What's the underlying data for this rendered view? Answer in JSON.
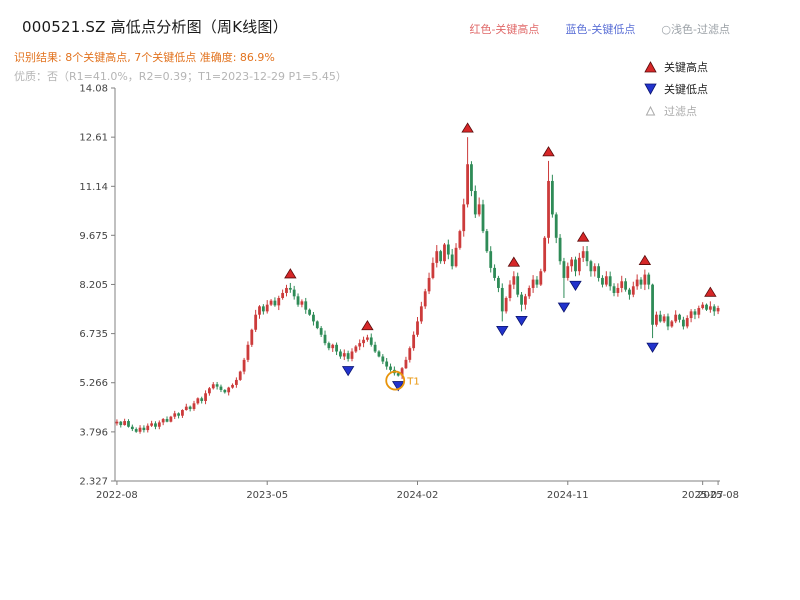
{
  "header": {
    "title": "000521.SZ 高低点分析图（周K线图）",
    "legend_high": "红色-关键高点",
    "legend_low": "蓝色-关键低点",
    "legend_filtered": "○浅色-过滤点",
    "result_line": "识别结果: 8个关键高点, 7个关键低点  准确度: 86.9%",
    "quality_line": "优质：否（R1=41.0%，R2=0.39；T1=2023-12-29 P1=5.45）"
  },
  "plot_legend": {
    "high": "关键高点",
    "low": "关键低点",
    "filtered": "过滤点"
  },
  "chart_data": {
    "type": "candlestick",
    "title": "000521.SZ 高低点分析图（周K线图）",
    "xlabel": "",
    "ylabel": "",
    "grid": false,
    "legend_position": "upper-right",
    "y_range": [
      2.327,
      14.08
    ],
    "y_ticks": [
      {
        "v": 2.327,
        "label": "2.327"
      },
      {
        "v": 3.796,
        "label": "3.796"
      },
      {
        "v": 5.266,
        "label": "5.266"
      },
      {
        "v": 6.735,
        "label": "6.735"
      },
      {
        "v": 8.205,
        "label": "8.205"
      },
      {
        "v": 9.675,
        "label": "9.675"
      },
      {
        "v": 11.14,
        "label": "11.14"
      },
      {
        "v": 12.61,
        "label": "12.61"
      },
      {
        "v": 14.08,
        "label": "14.08"
      }
    ],
    "x_ticks": [
      {
        "i": 0,
        "label": "2022-08"
      },
      {
        "i": 39,
        "label": "2023-05"
      },
      {
        "i": 78,
        "label": "2024-02"
      },
      {
        "i": 117,
        "label": "2024-11"
      },
      {
        "i": 152,
        "label": "2025-07"
      },
      {
        "i": 156,
        "label": "2025-08"
      }
    ],
    "open_first": 4.05,
    "closes": [
      4.1,
      4.0,
      4.12,
      3.95,
      3.88,
      3.8,
      3.92,
      3.85,
      3.98,
      4.05,
      3.95,
      4.08,
      4.18,
      4.1,
      4.25,
      4.35,
      4.28,
      4.45,
      4.55,
      4.48,
      4.65,
      4.8,
      4.72,
      4.95,
      5.1,
      5.22,
      5.15,
      5.05,
      4.98,
      5.12,
      5.2,
      5.35,
      5.6,
      5.95,
      6.4,
      6.85,
      7.3,
      7.55,
      7.4,
      7.6,
      7.72,
      7.58,
      7.8,
      7.95,
      8.1,
      8.05,
      7.85,
      7.6,
      7.7,
      7.45,
      7.3,
      7.1,
      6.9,
      6.7,
      6.45,
      6.3,
      6.4,
      6.2,
      6.05,
      6.15,
      5.98,
      6.2,
      6.35,
      6.45,
      6.55,
      6.62,
      6.4,
      6.2,
      6.05,
      5.9,
      5.75,
      5.65,
      5.55,
      5.48,
      5.7,
      5.95,
      6.3,
      6.7,
      7.1,
      7.55,
      8.0,
      8.4,
      8.85,
      9.2,
      8.9,
      9.4,
      9.1,
      8.75,
      9.3,
      9.8,
      10.6,
      11.8,
      11.0,
      10.3,
      10.6,
      9.8,
      9.2,
      8.7,
      8.4,
      8.1,
      7.4,
      7.8,
      8.2,
      8.45,
      7.9,
      7.6,
      7.85,
      8.1,
      8.35,
      8.2,
      8.6,
      9.6,
      11.3,
      10.3,
      9.6,
      8.9,
      8.4,
      8.75,
      8.95,
      8.6,
      9.0,
      9.2,
      8.9,
      8.6,
      8.75,
      8.4,
      8.2,
      8.45,
      8.15,
      7.95,
      8.1,
      8.3,
      8.05,
      7.9,
      8.15,
      8.35,
      8.2,
      8.5,
      8.2,
      7.0,
      7.3,
      7.1,
      7.25,
      6.95,
      7.1,
      7.3,
      7.15,
      6.95,
      7.2,
      7.4,
      7.3,
      7.5,
      7.6,
      7.45,
      7.55,
      7.4,
      7.5
    ],
    "candle_overrides": {
      "45": {
        "h": 8.25
      },
      "60": {
        "l": 5.9
      },
      "65": {
        "h": 6.7
      },
      "73": {
        "l": 5.45
      },
      "91": {
        "h": 12.61
      },
      "100": {
        "l": 7.1
      },
      "103": {
        "h": 8.6
      },
      "105": {
        "l": 7.4
      },
      "112": {
        "h": 11.9
      },
      "116": {
        "l": 7.8
      },
      "119": {
        "l": 8.45
      },
      "121": {
        "h": 9.35
      },
      "137": {
        "h": 8.65
      },
      "139": {
        "l": 6.6
      },
      "154": {
        "h": 7.7
      }
    },
    "key_highs": [
      {
        "i": 45,
        "price": 8.25
      },
      {
        "i": 65,
        "price": 6.7
      },
      {
        "i": 91,
        "price": 12.61
      },
      {
        "i": 103,
        "price": 8.6
      },
      {
        "i": 112,
        "price": 11.9
      },
      {
        "i": 121,
        "price": 9.35
      },
      {
        "i": 137,
        "price": 8.65
      },
      {
        "i": 154,
        "price": 7.7
      }
    ],
    "key_lows": [
      {
        "i": 60,
        "price": 5.9
      },
      {
        "i": 73,
        "price": 5.45
      },
      {
        "i": 100,
        "price": 7.1
      },
      {
        "i": 105,
        "price": 7.4
      },
      {
        "i": 116,
        "price": 7.8
      },
      {
        "i": 119,
        "price": 8.45
      },
      {
        "i": 139,
        "price": 6.6
      }
    ],
    "t1_annotation": {
      "i": 73,
      "price": 5.45,
      "label": "T1",
      "date": "2023-12-29",
      "p1": 5.45
    },
    "colors": {
      "up": "#cc3b3b",
      "down": "#2e8b57",
      "key_high": "#d62728",
      "key_low": "#2233cc",
      "t1": "#e8940a",
      "axis": "#808080",
      "tick_text": "#444444"
    }
  }
}
